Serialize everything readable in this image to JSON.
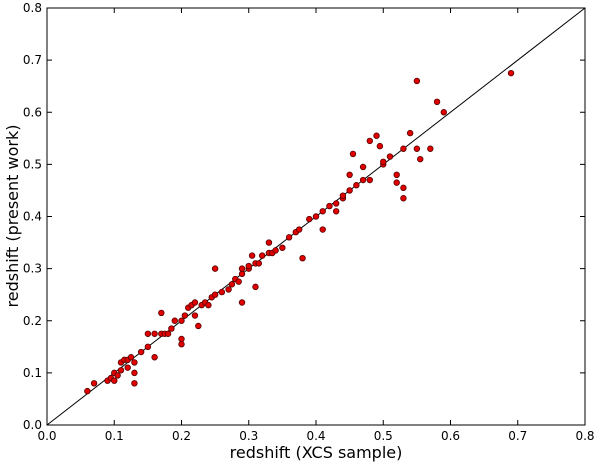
{
  "chart_data": {
    "type": "scatter",
    "title": "",
    "xlabel": "redshift  (XCS sample)",
    "ylabel": "redshift  (present work)",
    "xlim": [
      0.0,
      0.8
    ],
    "ylim": [
      0.0,
      0.8
    ],
    "xticks": [
      "0.0",
      "0.1",
      "0.2",
      "0.3",
      "0.4",
      "0.5",
      "0.6",
      "0.7",
      "0.8"
    ],
    "yticks": [
      "0.0",
      "0.1",
      "0.2",
      "0.3",
      "0.4",
      "0.5",
      "0.6",
      "0.7",
      "0.8"
    ],
    "grid": false,
    "reference_line": {
      "x": [
        0.0,
        0.8
      ],
      "y": [
        0.0,
        0.8
      ]
    },
    "marker_color": "#e00000",
    "points": [
      [
        0.06,
        0.065
      ],
      [
        0.07,
        0.08
      ],
      [
        0.09,
        0.085
      ],
      [
        0.095,
        0.09
      ],
      [
        0.1,
        0.085
      ],
      [
        0.1,
        0.1
      ],
      [
        0.105,
        0.095
      ],
      [
        0.11,
        0.105
      ],
      [
        0.11,
        0.12
      ],
      [
        0.115,
        0.125
      ],
      [
        0.12,
        0.11
      ],
      [
        0.12,
        0.125
      ],
      [
        0.125,
        0.13
      ],
      [
        0.13,
        0.08
      ],
      [
        0.13,
        0.1
      ],
      [
        0.13,
        0.12
      ],
      [
        0.14,
        0.14
      ],
      [
        0.15,
        0.15
      ],
      [
        0.15,
        0.175
      ],
      [
        0.16,
        0.175
      ],
      [
        0.16,
        0.13
      ],
      [
        0.17,
        0.175
      ],
      [
        0.17,
        0.215
      ],
      [
        0.175,
        0.175
      ],
      [
        0.18,
        0.175
      ],
      [
        0.185,
        0.185
      ],
      [
        0.19,
        0.2
      ],
      [
        0.2,
        0.2
      ],
      [
        0.2,
        0.165
      ],
      [
        0.2,
        0.155
      ],
      [
        0.205,
        0.21
      ],
      [
        0.21,
        0.225
      ],
      [
        0.215,
        0.23
      ],
      [
        0.22,
        0.21
      ],
      [
        0.22,
        0.235
      ],
      [
        0.225,
        0.19
      ],
      [
        0.23,
        0.23
      ],
      [
        0.235,
        0.235
      ],
      [
        0.24,
        0.23
      ],
      [
        0.245,
        0.245
      ],
      [
        0.25,
        0.25
      ],
      [
        0.25,
        0.3
      ],
      [
        0.26,
        0.255
      ],
      [
        0.27,
        0.26
      ],
      [
        0.275,
        0.27
      ],
      [
        0.28,
        0.28
      ],
      [
        0.285,
        0.275
      ],
      [
        0.29,
        0.29
      ],
      [
        0.29,
        0.235
      ],
      [
        0.29,
        0.3
      ],
      [
        0.3,
        0.3
      ],
      [
        0.3,
        0.305
      ],
      [
        0.305,
        0.325
      ],
      [
        0.31,
        0.31
      ],
      [
        0.31,
        0.265
      ],
      [
        0.315,
        0.31
      ],
      [
        0.32,
        0.325
      ],
      [
        0.33,
        0.33
      ],
      [
        0.33,
        0.35
      ],
      [
        0.335,
        0.33
      ],
      [
        0.34,
        0.335
      ],
      [
        0.35,
        0.34
      ],
      [
        0.36,
        0.36
      ],
      [
        0.37,
        0.37
      ],
      [
        0.375,
        0.375
      ],
      [
        0.38,
        0.32
      ],
      [
        0.39,
        0.395
      ],
      [
        0.4,
        0.4
      ],
      [
        0.41,
        0.41
      ],
      [
        0.41,
        0.375
      ],
      [
        0.42,
        0.42
      ],
      [
        0.43,
        0.425
      ],
      [
        0.43,
        0.41
      ],
      [
        0.44,
        0.435
      ],
      [
        0.44,
        0.44
      ],
      [
        0.45,
        0.45
      ],
      [
        0.45,
        0.48
      ],
      [
        0.455,
        0.52
      ],
      [
        0.46,
        0.46
      ],
      [
        0.47,
        0.47
      ],
      [
        0.47,
        0.495
      ],
      [
        0.48,
        0.545
      ],
      [
        0.48,
        0.47
      ],
      [
        0.49,
        0.555
      ],
      [
        0.495,
        0.535
      ],
      [
        0.5,
        0.5
      ],
      [
        0.5,
        0.505
      ],
      [
        0.51,
        0.515
      ],
      [
        0.52,
        0.48
      ],
      [
        0.52,
        0.465
      ],
      [
        0.53,
        0.455
      ],
      [
        0.53,
        0.435
      ],
      [
        0.53,
        0.53
      ],
      [
        0.54,
        0.56
      ],
      [
        0.55,
        0.53
      ],
      [
        0.55,
        0.66
      ],
      [
        0.555,
        0.51
      ],
      [
        0.57,
        0.53
      ],
      [
        0.58,
        0.62
      ],
      [
        0.59,
        0.6
      ],
      [
        0.69,
        0.675
      ]
    ]
  }
}
